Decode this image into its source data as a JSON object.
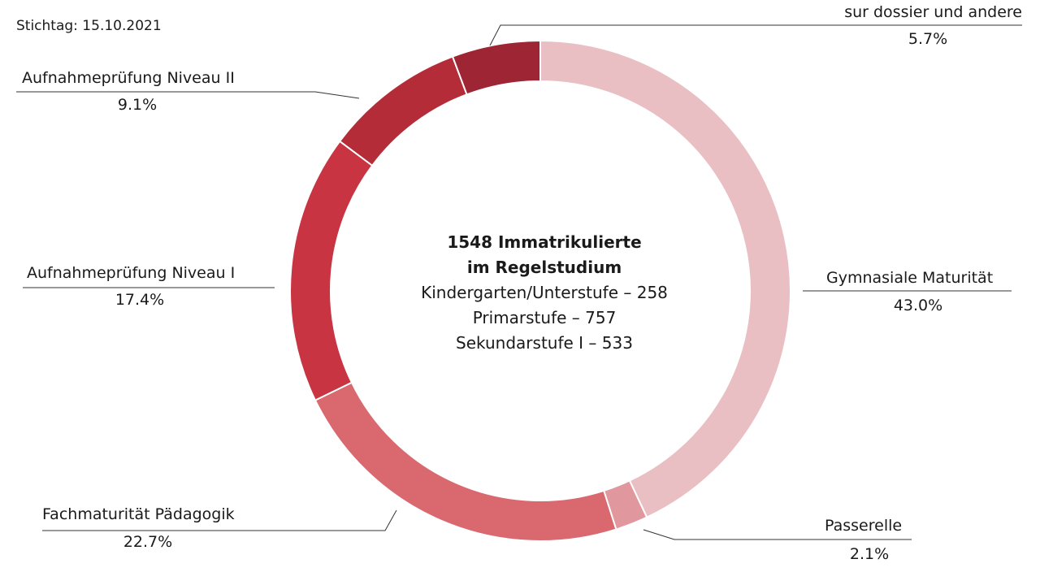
{
  "stichtag": "Stichtag: 15.10.2021",
  "center": {
    "line1": "1548 Immatrikulierte",
    "line2": "im Regelstudium",
    "line3": "Kindergarten/Unterstufe – 258",
    "line4": "Primarstufe – 757",
    "line5": "Sekundarstufe I – 533"
  },
  "colors": {
    "gymnasiale": "#e9bfc3",
    "passerelle": "#e0979d",
    "fachmaturitaet": "#d9686f",
    "niveau1": "#c93442",
    "niveau2": "#b52c39",
    "dossier": "#9e2533",
    "leader": "#333333"
  },
  "chart_data": {
    "type": "pie",
    "donut": true,
    "categories": [
      "Gymnasiale Maturität",
      "Passerelle",
      "Fachmaturität Pädagogik",
      "Aufnahmeprüfung Niveau I",
      "Aufnahmeprüfung Niveau II",
      "sur dossier und andere"
    ],
    "values": [
      43.0,
      2.1,
      22.7,
      17.4,
      9.1,
      5.7
    ],
    "value_labels": [
      "43.0%",
      "2.1%",
      "22.7%",
      "17.4%",
      "9.1%",
      "5.7%"
    ],
    "title": "",
    "legend": "none"
  }
}
